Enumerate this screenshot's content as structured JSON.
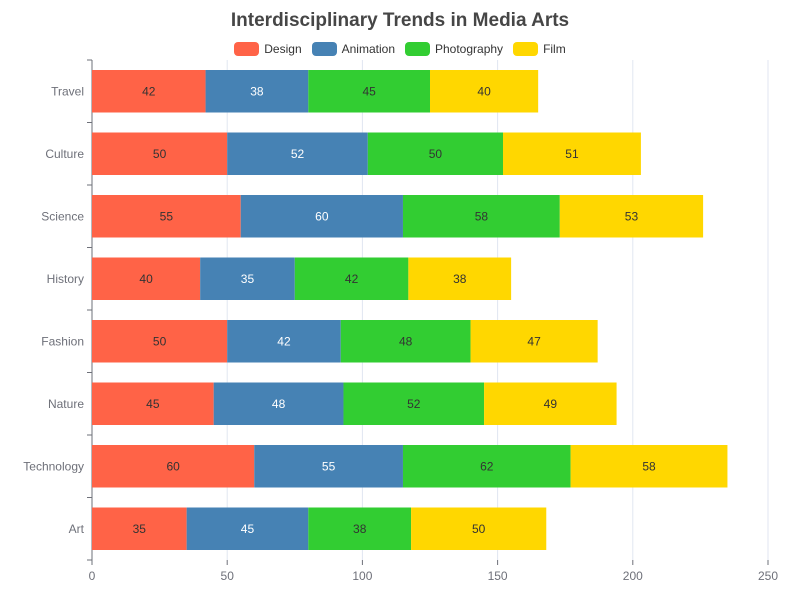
{
  "chart_data": {
    "type": "bar",
    "orientation": "horizontal",
    "stacked": true,
    "title": "Interdisciplinary Trends in Media Arts",
    "categories": [
      "Travel",
      "Culture",
      "Science",
      "History",
      "Fashion",
      "Nature",
      "Technology",
      "Art"
    ],
    "series": [
      {
        "name": "Design",
        "color": "#ff6347",
        "values": [
          42,
          50,
          55,
          40,
          50,
          45,
          60,
          35
        ]
      },
      {
        "name": "Animation",
        "color": "#4682b4",
        "values": [
          38,
          52,
          60,
          35,
          42,
          48,
          55,
          45
        ]
      },
      {
        "name": "Photography",
        "color": "#32cd32",
        "values": [
          45,
          50,
          58,
          42,
          48,
          52,
          62,
          38
        ]
      },
      {
        "name": "Film",
        "color": "#ffd700",
        "values": [
          40,
          51,
          53,
          38,
          47,
          49,
          58,
          50
        ]
      }
    ],
    "xlim": [
      0,
      250
    ],
    "xticks": [
      0,
      50,
      100,
      150,
      200,
      250
    ],
    "grid": true,
    "legend_position": "top"
  }
}
